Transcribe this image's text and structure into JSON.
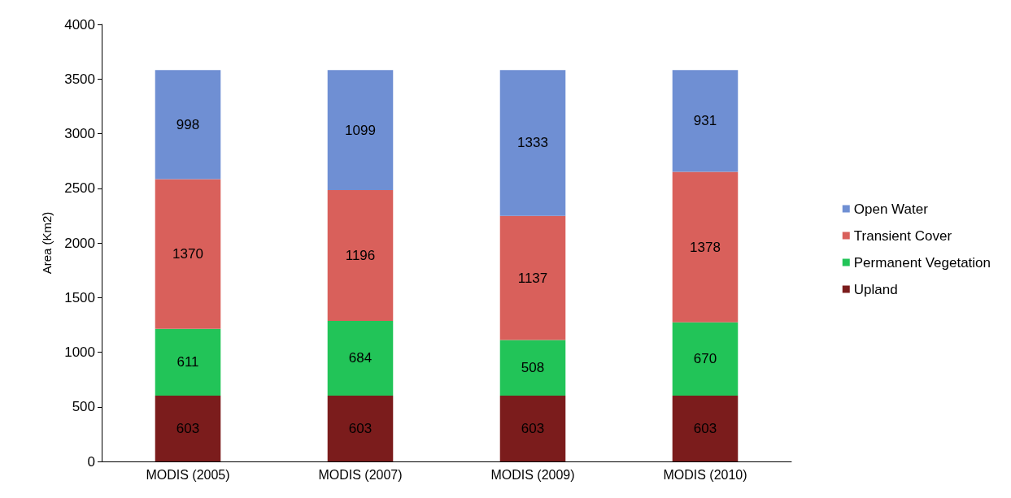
{
  "chart_data": {
    "type": "bar",
    "stacked": true,
    "ylabel": "Area (Km2)",
    "categories": [
      "MODIS (2005)",
      "MODIS (2007)",
      "MODIS (2009)",
      "MODIS (2010)"
    ],
    "series": [
      {
        "name": "Upland",
        "color": "#7b1c1c",
        "values": [
          603,
          603,
          603,
          603
        ]
      },
      {
        "name": "Permanent Vegetation",
        "color": "#22c458",
        "values": [
          611,
          684,
          508,
          670
        ]
      },
      {
        "name": "Transient Cover",
        "color": "#d9605b",
        "values": [
          1370,
          1196,
          1137,
          1378
        ]
      },
      {
        "name": "Open Water",
        "color": "#6f8fd3",
        "values": [
          998,
          1099,
          1333,
          931
        ]
      }
    ],
    "ylim": [
      0,
      4000
    ],
    "yticks": [
      0,
      500,
      1000,
      1500,
      2000,
      2500,
      3000,
      3500,
      4000
    ],
    "grid": false,
    "legend": "right",
    "data_labels": true
  }
}
